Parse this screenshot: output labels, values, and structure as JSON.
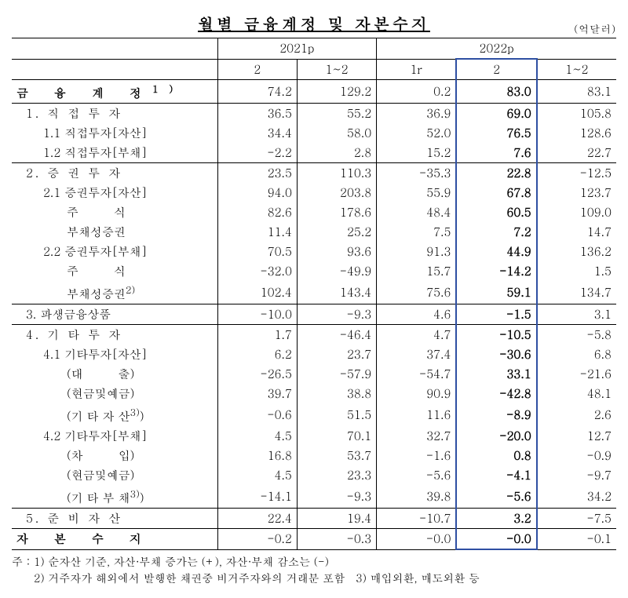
{
  "title": "월별 금융계정 및 자본수지",
  "unit": "(억달러)",
  "columns": {
    "groupA": "2021p",
    "groupB": "2022p",
    "a1": "2",
    "a2": "1~2",
    "b1": "1r",
    "b2": "2",
    "b3": "1~2"
  },
  "rows": {
    "fa": {
      "label": "금 융 계 정",
      "sup": "1)",
      "a1": "74.2",
      "a2": "129.2",
      "b1": "0.2",
      "b2": "83.0",
      "b3": "83.1"
    },
    "r1": {
      "label": "1. 직 접 투 자",
      "a1": "36.5",
      "a2": "55.2",
      "b1": "36.9",
      "b2": "69.0",
      "b3": "105.8"
    },
    "r11": {
      "label": "1.1 직접투자[자산]",
      "a1": "34.4",
      "a2": "58.0",
      "b1": "52.0",
      "b2": "76.5",
      "b3": "128.6"
    },
    "r12": {
      "label": "1.2 직접투자[부채]",
      "a1": "-2.2",
      "a2": "2.8",
      "b1": "15.2",
      "b2": "7.6",
      "b3": "22.7"
    },
    "r2": {
      "label": "2. 증 권 투 자",
      "a1": "23.5",
      "a2": "110.3",
      "b1": "-35.3",
      "b2": "22.8",
      "b3": "-12.5"
    },
    "r21": {
      "label": "2.1 증권투자[자산]",
      "a1": "94.0",
      "a2": "203.8",
      "b1": "55.9",
      "b2": "67.8",
      "b3": "123.7"
    },
    "r21a": {
      "label": "주　　　식",
      "a1": "82.6",
      "a2": "178.6",
      "b1": "48.4",
      "b2": "60.5",
      "b3": "109.0"
    },
    "r21b": {
      "label": "부채성증권",
      "a1": "11.4",
      "a2": "25.2",
      "b1": "7.5",
      "b2": "7.2",
      "b3": "14.7"
    },
    "r22": {
      "label": "2.2 증권투자[부채]",
      "a1": "70.5",
      "a2": "93.6",
      "b1": "91.3",
      "b2": "44.9",
      "b3": "136.2"
    },
    "r22a": {
      "label": "주　　　식",
      "a1": "-32.0",
      "a2": "-49.9",
      "b1": "15.7",
      "b2": "-14.2",
      "b3": "1.5"
    },
    "r22b": {
      "label": "부채성증권",
      "sup": "2)",
      "a1": "102.4",
      "a2": "143.4",
      "b1": "75.6",
      "b2": "59.1",
      "b3": "134.7"
    },
    "r3": {
      "label": "3. 파생금융상품",
      "a1": "-10.0",
      "a2": "-9.3",
      "b1": "4.6",
      "b2": "-1.5",
      "b3": "3.1"
    },
    "r4": {
      "label": "4. 기 타 투 자",
      "a1": "1.7",
      "a2": "-46.4",
      "b1": "4.7",
      "b2": "-10.5",
      "b3": "-5.8"
    },
    "r41": {
      "label": "4.1 기타투자[자산]",
      "a1": "6.2",
      "a2": "23.7",
      "b1": "37.4",
      "b2": "-30.6",
      "b3": "6.8"
    },
    "r41a": {
      "label": "(대　　　출)",
      "a1": "-26.5",
      "a2": "-57.9",
      "b1": "-54.7",
      "b2": "33.1",
      "b3": "-21.6"
    },
    "r41b": {
      "label": "(현금및예금)",
      "a1": "39.7",
      "a2": "38.8",
      "b1": "90.9",
      "b2": "-42.8",
      "b3": "48.1"
    },
    "r41c": {
      "label": "(기 타 자 산",
      "sup": "3)",
      "suffix": ")",
      "a1": "-0.6",
      "a2": "51.5",
      "b1": "11.6",
      "b2": "-8.9",
      "b3": "2.6"
    },
    "r42": {
      "label": "4.2 기타투자[부채]",
      "a1": "4.5",
      "a2": "70.1",
      "b1": "32.7",
      "b2": "-20.0",
      "b3": "12.7"
    },
    "r42a": {
      "label": "(차　　　입)",
      "a1": "16.8",
      "a2": "53.7",
      "b1": "-1.6",
      "b2": "0.8",
      "b3": "-0.9"
    },
    "r42b": {
      "label": "(현금및예금)",
      "a1": "4.5",
      "a2": "23.3",
      "b1": "-5.6",
      "b2": "-4.1",
      "b3": "-9.7"
    },
    "r42c": {
      "label": "(기 타 부 채",
      "sup": "3)",
      "suffix": ")",
      "a1": "-14.1",
      "a2": "-9.3",
      "b1": "39.8",
      "b2": "-5.6",
      "b3": "34.2"
    },
    "r5": {
      "label": "5. 준 비 자 산",
      "a1": "22.4",
      "a2": "19.4",
      "b1": "-10.7",
      "b2": "3.2",
      "b3": "-7.5"
    },
    "ca": {
      "label": "자 본 수 지",
      "a1": "-0.2",
      "a2": "-0.3",
      "b1": "-0.0",
      "b2": "-0.0",
      "b3": "-0.1"
    }
  },
  "footnotes": {
    "intro": "주 : ",
    "f1": "1) 순자산 기준, 자산·부채 증가는 (+), 자산·부채 감소는 (-)",
    "f2": "2) 거주자가 해외에서 발행한 채권중 비거주자와의 거래분 포함",
    "f3": "3) 매입외환, 매도외환 등"
  }
}
